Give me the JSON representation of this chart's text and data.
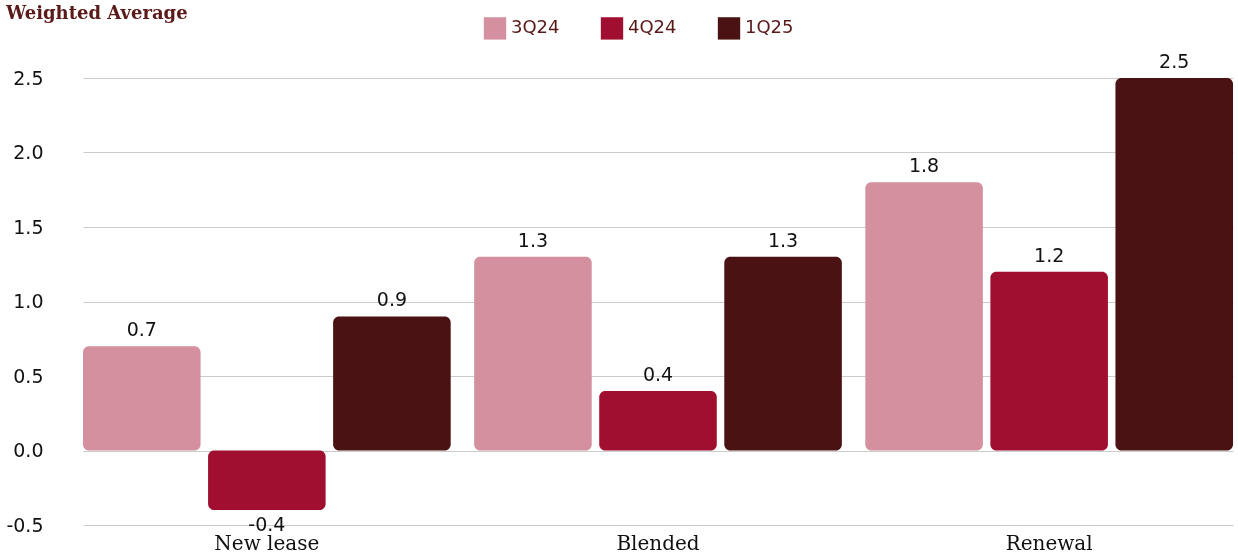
{
  "chart_data": {
    "type": "bar",
    "title": "Weighted Average",
    "categories": [
      "New lease",
      "Blended",
      "Renewal"
    ],
    "series": [
      {
        "name": "3Q24",
        "color": "#d4909e",
        "values": [
          0.7,
          1.3,
          1.8
        ]
      },
      {
        "name": "4Q24",
        "color": "#a00f30",
        "values": [
          -0.4,
          0.4,
          1.2
        ]
      },
      {
        "name": "1Q25",
        "color": "#4a1212",
        "values": [
          0.9,
          1.3,
          2.5
        ]
      }
    ],
    "ylim": [
      -0.5,
      2.5
    ],
    "yticks": [
      {
        "value": -0.5,
        "label": "-0.5"
      },
      {
        "value": 0,
        "label": "0.0"
      },
      {
        "value": 0.5,
        "label": "0.5"
      },
      {
        "value": 1,
        "label": "1.0"
      },
      {
        "value": 1.5,
        "label": "1.5"
      },
      {
        "value": 2,
        "label": "2.0"
      },
      {
        "value": 2.5,
        "label": "2.5"
      }
    ],
    "grid": "y",
    "legend": "top",
    "data_labels": true
  }
}
